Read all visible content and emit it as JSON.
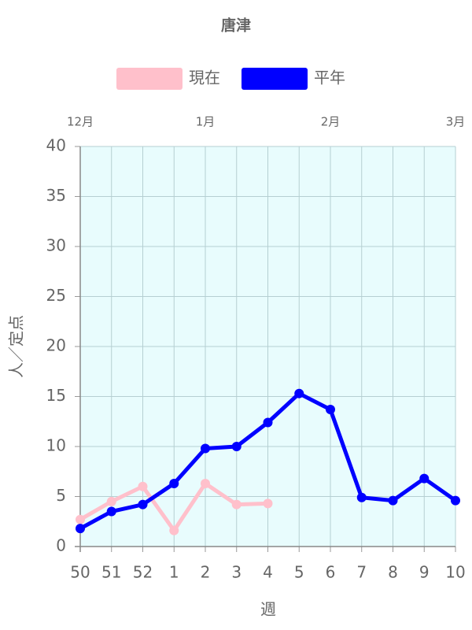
{
  "chart_data": {
    "type": "line",
    "title": "唐津",
    "x_label": "週",
    "y_label": "人／定点",
    "categories": [
      "50",
      "51",
      "52",
      "1",
      "2",
      "3",
      "4",
      "5",
      "6",
      "7",
      "8",
      "9",
      "10"
    ],
    "x2_categories": [
      "12月",
      null,
      null,
      null,
      "1月",
      null,
      null,
      null,
      "2月",
      null,
      null,
      null,
      "3月"
    ],
    "series": [
      {
        "name": "現在",
        "color": "#ffc0cb",
        "values": [
          2.7,
          4.5,
          6.0,
          1.6,
          6.3,
          4.2,
          4.3,
          null,
          null,
          null,
          null,
          null,
          null
        ]
      },
      {
        "name": "平年",
        "color": "#0000ff",
        "values": [
          1.8,
          3.5,
          4.2,
          6.3,
          9.8,
          10.0,
          12.4,
          15.3,
          13.7,
          4.9,
          4.6,
          6.8,
          4.6
        ]
      }
    ],
    "ylim": [
      0,
      40
    ],
    "yticks": [
      0,
      5,
      10,
      15,
      20,
      25,
      30,
      35,
      40
    ],
    "grid": true,
    "plot_background": "#e8fcfd",
    "legend_position": "top"
  }
}
